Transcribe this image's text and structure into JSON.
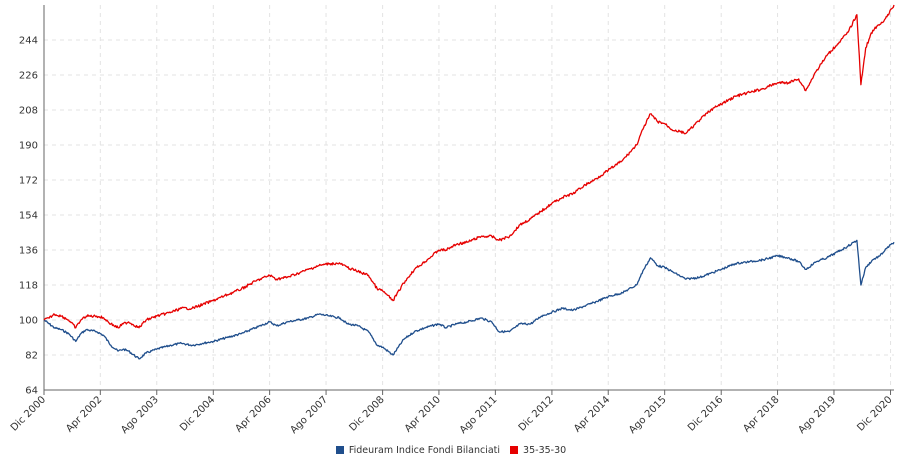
{
  "chart_data": {
    "type": "line",
    "title": "",
    "xlabel": "",
    "ylabel": "",
    "ylim": [
      64,
      262
    ],
    "yticks": [
      64,
      82,
      100,
      118,
      136,
      154,
      172,
      190,
      208,
      226,
      244
    ],
    "xlim": [
      "2000-12-01",
      "2020-12-31"
    ],
    "xticks": [
      {
        "label": "Dic 2000",
        "date": "2000-12-01"
      },
      {
        "label": "Apr 2002",
        "date": "2002-04-01"
      },
      {
        "label": "Ago 2003",
        "date": "2003-08-01"
      },
      {
        "label": "Dic 2004",
        "date": "2004-12-01"
      },
      {
        "label": "Apr 2006",
        "date": "2006-04-01"
      },
      {
        "label": "Ago 2007",
        "date": "2007-08-01"
      },
      {
        "label": "Dic 2008",
        "date": "2008-12-01"
      },
      {
        "label": "Apr 2010",
        "date": "2010-04-01"
      },
      {
        "label": "Ago 2011",
        "date": "2011-08-01"
      },
      {
        "label": "Dic 2012",
        "date": "2012-12-01"
      },
      {
        "label": "Apr 2014",
        "date": "2014-04-01"
      },
      {
        "label": "Ago 2015",
        "date": "2015-08-01"
      },
      {
        "label": "Dic 2016",
        "date": "2016-12-01"
      },
      {
        "label": "Apr 2018",
        "date": "2018-04-01"
      },
      {
        "label": "Ago 2019",
        "date": "2019-08-01"
      },
      {
        "label": "Dic 2020",
        "date": "2020-12-01"
      }
    ],
    "grid": true,
    "legend_position": "bottom-center",
    "series": [
      {
        "name": "Fideuram Indice Fondi Bilanciati",
        "color": "#1f4e8c",
        "points": [
          [
            "2000-12-01",
            100
          ],
          [
            "2001-01-15",
            98
          ],
          [
            "2001-03-01",
            96
          ],
          [
            "2001-05-01",
            95
          ],
          [
            "2001-07-01",
            93
          ],
          [
            "2001-09-01",
            89
          ],
          [
            "2001-10-15",
            93
          ],
          [
            "2001-12-01",
            95
          ],
          [
            "2002-03-01",
            94
          ],
          [
            "2002-05-01",
            92
          ],
          [
            "2002-07-01",
            87
          ],
          [
            "2002-09-01",
            84
          ],
          [
            "2002-10-15",
            85
          ],
          [
            "2002-12-01",
            84
          ],
          [
            "2003-03-01",
            80
          ],
          [
            "2003-05-01",
            83
          ],
          [
            "2003-08-01",
            85
          ],
          [
            "2003-12-01",
            87
          ],
          [
            "2004-03-01",
            88
          ],
          [
            "2004-06-01",
            87
          ],
          [
            "2004-09-01",
            88
          ],
          [
            "2004-12-01",
            89
          ],
          [
            "2005-04-01",
            91
          ],
          [
            "2005-08-01",
            93
          ],
          [
            "2005-12-01",
            96
          ],
          [
            "2006-04-01",
            99
          ],
          [
            "2006-06-01",
            97
          ],
          [
            "2006-09-01",
            99
          ],
          [
            "2006-12-01",
            100
          ],
          [
            "2007-03-01",
            101
          ],
          [
            "2007-06-01",
            103
          ],
          [
            "2007-09-01",
            102
          ],
          [
            "2007-12-01",
            101
          ],
          [
            "2008-02-01",
            98
          ],
          [
            "2008-05-01",
            97
          ],
          [
            "2008-08-01",
            94
          ],
          [
            "2008-10-15",
            87
          ],
          [
            "2008-12-01",
            86
          ],
          [
            "2009-03-01",
            82
          ],
          [
            "2009-06-01",
            90
          ],
          [
            "2009-09-01",
            94
          ],
          [
            "2009-12-01",
            96
          ],
          [
            "2010-04-01",
            98
          ],
          [
            "2010-06-01",
            96
          ],
          [
            "2010-09-01",
            98
          ],
          [
            "2010-12-01",
            99
          ],
          [
            "2011-04-01",
            101
          ],
          [
            "2011-07-01",
            99
          ],
          [
            "2011-09-01",
            94
          ],
          [
            "2011-12-01",
            94
          ],
          [
            "2012-03-01",
            98
          ],
          [
            "2012-06-01",
            98
          ],
          [
            "2012-09-01",
            102
          ],
          [
            "2012-12-01",
            104
          ],
          [
            "2013-03-01",
            106
          ],
          [
            "2013-06-01",
            105
          ],
          [
            "2013-09-01",
            107
          ],
          [
            "2013-12-01",
            109
          ],
          [
            "2014-04-01",
            112
          ],
          [
            "2014-08-01",
            114
          ],
          [
            "2014-12-01",
            118
          ],
          [
            "2015-02-01",
            126
          ],
          [
            "2015-04-01",
            132
          ],
          [
            "2015-06-01",
            128
          ],
          [
            "2015-08-01",
            127
          ],
          [
            "2015-10-01",
            125
          ],
          [
            "2016-02-01",
            121
          ],
          [
            "2016-06-01",
            122
          ],
          [
            "2016-09-01",
            124
          ],
          [
            "2016-12-01",
            126
          ],
          [
            "2017-04-01",
            129
          ],
          [
            "2017-08-01",
            130
          ],
          [
            "2017-12-01",
            131
          ],
          [
            "2018-04-01",
            133
          ],
          [
            "2018-07-01",
            132
          ],
          [
            "2018-10-01",
            130
          ],
          [
            "2018-12-01",
            126
          ],
          [
            "2019-03-01",
            130
          ],
          [
            "2019-06-01",
            132
          ],
          [
            "2019-09-01",
            135
          ],
          [
            "2019-12-01",
            138
          ],
          [
            "2020-02-15",
            141
          ],
          [
            "2020-03-20",
            118
          ],
          [
            "2020-05-01",
            127
          ],
          [
            "2020-07-01",
            131
          ],
          [
            "2020-09-01",
            133
          ],
          [
            "2020-11-01",
            137
          ],
          [
            "2020-12-31",
            140
          ]
        ]
      },
      {
        "name": "35-35-30",
        "color": "#e60000",
        "points": [
          [
            "2000-12-01",
            100
          ],
          [
            "2001-01-15",
            101
          ],
          [
            "2001-03-01",
            103
          ],
          [
            "2001-05-01",
            102
          ],
          [
            "2001-07-01",
            100
          ],
          [
            "2001-09-01",
            96
          ],
          [
            "2001-10-15",
            100
          ],
          [
            "2001-12-01",
            102
          ],
          [
            "2002-03-01",
            102
          ],
          [
            "2002-05-01",
            101
          ],
          [
            "2002-07-01",
            98
          ],
          [
            "2002-09-01",
            96
          ],
          [
            "2002-10-15",
            98
          ],
          [
            "2002-12-01",
            99
          ],
          [
            "2003-03-01",
            96
          ],
          [
            "2003-05-01",
            100
          ],
          [
            "2003-08-01",
            102
          ],
          [
            "2003-12-01",
            104
          ],
          [
            "2004-03-01",
            106
          ],
          [
            "2004-06-01",
            106
          ],
          [
            "2004-09-01",
            108
          ],
          [
            "2004-12-01",
            110
          ],
          [
            "2005-04-01",
            113
          ],
          [
            "2005-08-01",
            116
          ],
          [
            "2005-12-01",
            120
          ],
          [
            "2006-04-01",
            123
          ],
          [
            "2006-06-01",
            121
          ],
          [
            "2006-09-01",
            122
          ],
          [
            "2006-12-01",
            124
          ],
          [
            "2007-03-01",
            126
          ],
          [
            "2007-06-01",
            128
          ],
          [
            "2007-09-01",
            129
          ],
          [
            "2007-12-01",
            129
          ],
          [
            "2008-02-01",
            127
          ],
          [
            "2008-05-01",
            125
          ],
          [
            "2008-08-01",
            123
          ],
          [
            "2008-10-15",
            116
          ],
          [
            "2008-12-01",
            115
          ],
          [
            "2009-03-01",
            110
          ],
          [
            "2009-06-01",
            119
          ],
          [
            "2009-09-01",
            126
          ],
          [
            "2009-12-01",
            130
          ],
          [
            "2010-04-01",
            136
          ],
          [
            "2010-06-01",
            136
          ],
          [
            "2010-09-01",
            139
          ],
          [
            "2010-12-01",
            140
          ],
          [
            "2011-04-01",
            143
          ],
          [
            "2011-07-01",
            143
          ],
          [
            "2011-09-01",
            141
          ],
          [
            "2011-12-01",
            143
          ],
          [
            "2012-03-01",
            149
          ],
          [
            "2012-06-01",
            152
          ],
          [
            "2012-09-01",
            156
          ],
          [
            "2012-12-01",
            160
          ],
          [
            "2013-03-01",
            163
          ],
          [
            "2013-06-01",
            165
          ],
          [
            "2013-09-01",
            169
          ],
          [
            "2013-12-01",
            172
          ],
          [
            "2014-04-01",
            177
          ],
          [
            "2014-08-01",
            182
          ],
          [
            "2014-12-01",
            190
          ],
          [
            "2015-02-01",
            199
          ],
          [
            "2015-04-01",
            206
          ],
          [
            "2015-06-01",
            202
          ],
          [
            "2015-08-01",
            201
          ],
          [
            "2015-10-01",
            198
          ],
          [
            "2016-02-01",
            196
          ],
          [
            "2016-06-01",
            203
          ],
          [
            "2016-09-01",
            208
          ],
          [
            "2016-12-01",
            211
          ],
          [
            "2017-04-01",
            215
          ],
          [
            "2017-08-01",
            217
          ],
          [
            "2017-12-01",
            219
          ],
          [
            "2018-04-01",
            222
          ],
          [
            "2018-07-01",
            222
          ],
          [
            "2018-10-01",
            224
          ],
          [
            "2018-12-01",
            218
          ],
          [
            "2019-03-01",
            228
          ],
          [
            "2019-06-01",
            236
          ],
          [
            "2019-09-01",
            242
          ],
          [
            "2019-12-01",
            248
          ],
          [
            "2020-02-15",
            257
          ],
          [
            "2020-03-20",
            221
          ],
          [
            "2020-05-01",
            240
          ],
          [
            "2020-07-01",
            249
          ],
          [
            "2020-09-01",
            252
          ],
          [
            "2020-11-01",
            256
          ],
          [
            "2020-12-31",
            262
          ]
        ]
      }
    ]
  }
}
